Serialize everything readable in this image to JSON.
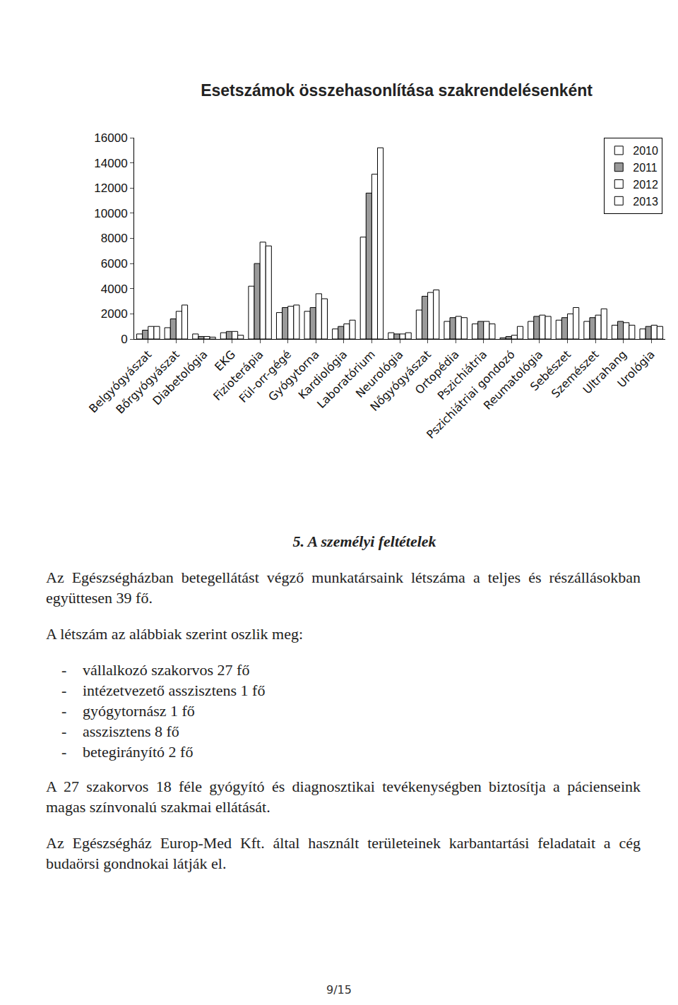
{
  "chart_data": {
    "type": "bar",
    "title": "Esetszámok összehasonlítása szakrendelésenként",
    "categories": [
      "Belgyógyászat",
      "Bőrgyógyászat",
      "Diabetológia",
      "EKG",
      "Fizioterápia",
      "Fül-orr-gégé",
      "Gyógytorna",
      "Kardiológia",
      "Laboratórium",
      "Neurológia",
      "Nőgyógyászat",
      "Ortopédia",
      "Pszichiátria",
      "Pszichiátriai gondozó",
      "Reumatológia",
      "Sebészet",
      "Szemészet",
      "Ultrahang",
      "Urológia"
    ],
    "series": [
      {
        "name": "2010",
        "color": "#ffffff",
        "values": [
          400,
          900,
          400,
          500,
          4200,
          2100,
          2200,
          800,
          8100,
          500,
          2300,
          1400,
          1200,
          100,
          1400,
          1500,
          1400,
          1100,
          800
        ]
      },
      {
        "name": "2011",
        "color": "#9a9a9a",
        "values": [
          700,
          1600,
          200,
          600,
          6000,
          2500,
          2500,
          1000,
          11600,
          400,
          3400,
          1700,
          1400,
          200,
          1800,
          1700,
          1700,
          1400,
          1000
        ]
      },
      {
        "name": "2012",
        "color": "#ffffff",
        "values": [
          1000,
          2200,
          200,
          600,
          7700,
          2600,
          3600,
          1200,
          13100,
          400,
          3700,
          1800,
          1400,
          300,
          1900,
          2000,
          1900,
          1300,
          1100
        ]
      },
      {
        "name": "2013",
        "color": "#ffffff",
        "values": [
          1000,
          2700,
          150,
          300,
          7400,
          2700,
          3200,
          1500,
          15200,
          500,
          3900,
          1700,
          1200,
          1000,
          1800,
          2500,
          2400,
          1100,
          1000
        ]
      }
    ],
    "ylim": [
      0,
      16000
    ],
    "yticks": [
      0,
      2000,
      4000,
      6000,
      8000,
      10000,
      12000,
      14000,
      16000
    ],
    "grid": false,
    "legend": "top-right"
  },
  "document": {
    "heading": "5. A személyi feltételek",
    "paragraphs_before": [
      "Az Egészségházban betegellátást végző munkatársaink létszáma a teljes és részállásokban együttesen 39 fő.",
      "A létszám az alábbiak szerint oszlik meg:"
    ],
    "list": [
      "vállalkozó szakorvos 27 fő",
      "intézetvezető asszisztens 1 fő",
      "gyógytornász 1 fő",
      "asszisztens 8 fő",
      "betegirányító 2 fő"
    ],
    "paragraphs_after": [
      "A 27 szakorvos 18 féle gyógyító és diagnosztikai tevékenységben biztosítja a pácienseink magas színvonalú szakmai ellátását.",
      "Az Egészségház Europ-Med Kft. által használt területeinek karbantartási feladatait a cég budaörsi gondnokai látják el."
    ],
    "page_number": "9/15"
  }
}
